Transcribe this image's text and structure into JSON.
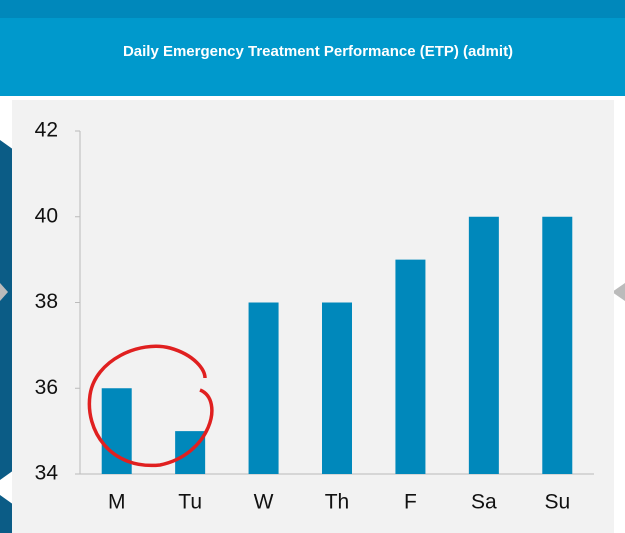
{
  "chart_data": {
    "type": "bar",
    "title": "Daily Emergency Treatment Performance (ETP) (admit)",
    "categories": [
      "M",
      "Tu",
      "W",
      "Th",
      "F",
      "Sa",
      "Su"
    ],
    "values": [
      36,
      35,
      38,
      38,
      39,
      40,
      40
    ],
    "color": "#0088bb",
    "ylim": [
      34,
      42
    ],
    "yticks": [
      34,
      36,
      38,
      40,
      42
    ],
    "grid": false
  }
}
